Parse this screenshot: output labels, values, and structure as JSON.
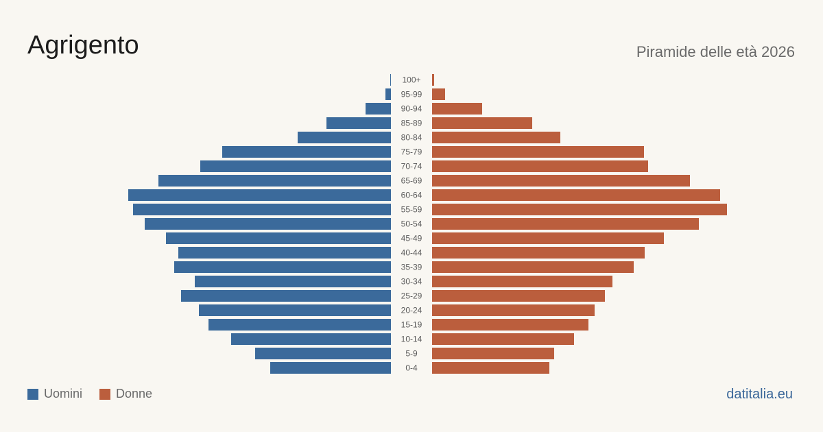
{
  "header": {
    "title": "Agrigento",
    "subtitle": "Piramide delle età 2026"
  },
  "legend": {
    "men_label": "Uomini",
    "women_label": "Donne"
  },
  "footer": {
    "site": "datitalia.eu"
  },
  "colors": {
    "men": "#3b6a9b",
    "women": "#bb5e3d"
  },
  "chart_data": {
    "type": "bar",
    "title": "Piramide delle età 2026",
    "categories": [
      "100+",
      "95-99",
      "90-94",
      "85-89",
      "80-84",
      "75-79",
      "70-74",
      "65-69",
      "60-64",
      "55-59",
      "50-54",
      "45-49",
      "40-44",
      "35-39",
      "30-34",
      "25-29",
      "20-24",
      "15-19",
      "10-14",
      "5-9",
      "0-4"
    ],
    "series": [
      {
        "name": "Uomini",
        "values": [
          1,
          8,
          37,
          94,
          136,
          246,
          278,
          339,
          383,
          376,
          359,
          328,
          310,
          316,
          286,
          306,
          280,
          266,
          233,
          198,
          176
        ]
      },
      {
        "name": "Donne",
        "values": [
          3,
          19,
          73,
          146,
          187,
          309,
          315,
          376,
          420,
          430,
          389,
          338,
          310,
          294,
          263,
          252,
          237,
          228,
          207,
          178,
          171
        ]
      }
    ],
    "xlabel": "",
    "ylabel": "",
    "grid": false,
    "legend_position": "bottom-left"
  }
}
